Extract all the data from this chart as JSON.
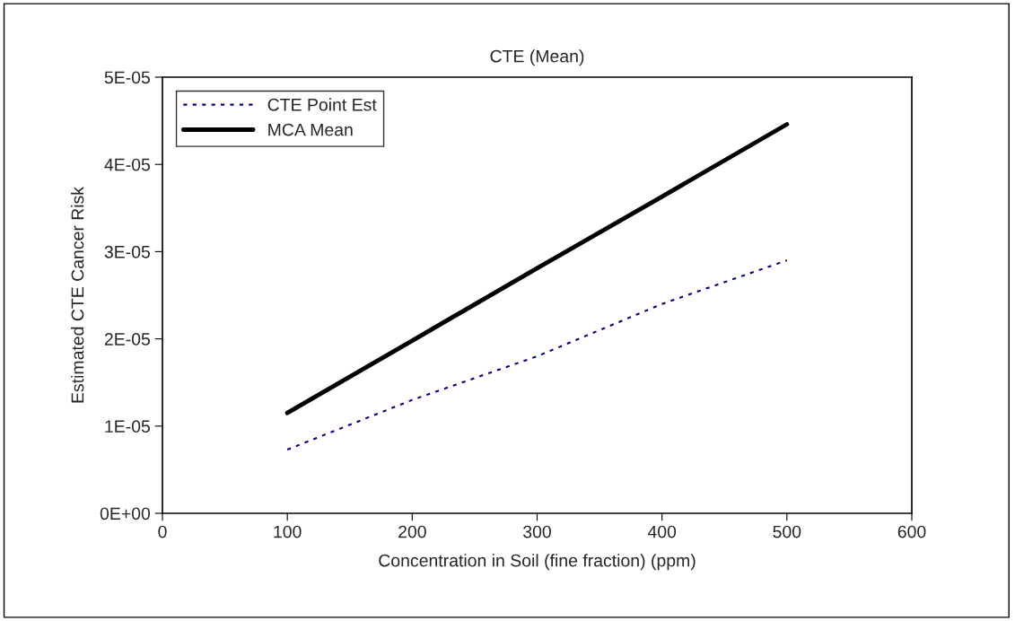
{
  "chart_data": {
    "type": "line",
    "title": "CTE (Mean)",
    "xlabel": "Concentration in Soil (fine fraction) (ppm)",
    "ylabel": "Estimated CTE Cancer Risk",
    "x": [
      100,
      200,
      300,
      400,
      500
    ],
    "series": [
      {
        "name": "CTE Point Est",
        "color": "#000080",
        "line_style": "dotted",
        "values": [
          7.3e-06,
          1.3e-05,
          1.8e-05,
          2.4e-05,
          2.9e-05
        ]
      },
      {
        "name": "MCA Mean",
        "color": "#000000",
        "line_style": "solid",
        "values": [
          1.15e-05,
          1.98e-05,
          2.81e-05,
          3.63e-05,
          4.46e-05
        ]
      }
    ],
    "xlim": [
      0,
      600
    ],
    "xticks": [
      0,
      100,
      200,
      300,
      400,
      500,
      600
    ],
    "ylim": [
      0,
      5e-05
    ],
    "yticks": [
      {
        "value": 0,
        "label": "0E+00"
      },
      {
        "value": 1e-05,
        "label": "1E-05"
      },
      {
        "value": 2e-05,
        "label": "2E-05"
      },
      {
        "value": 3e-05,
        "label": "3E-05"
      },
      {
        "value": 4e-05,
        "label": "4E-05"
      },
      {
        "value": 5e-05,
        "label": "5E-05"
      }
    ],
    "grid": false,
    "legend": "top left",
    "marker": "none"
  }
}
